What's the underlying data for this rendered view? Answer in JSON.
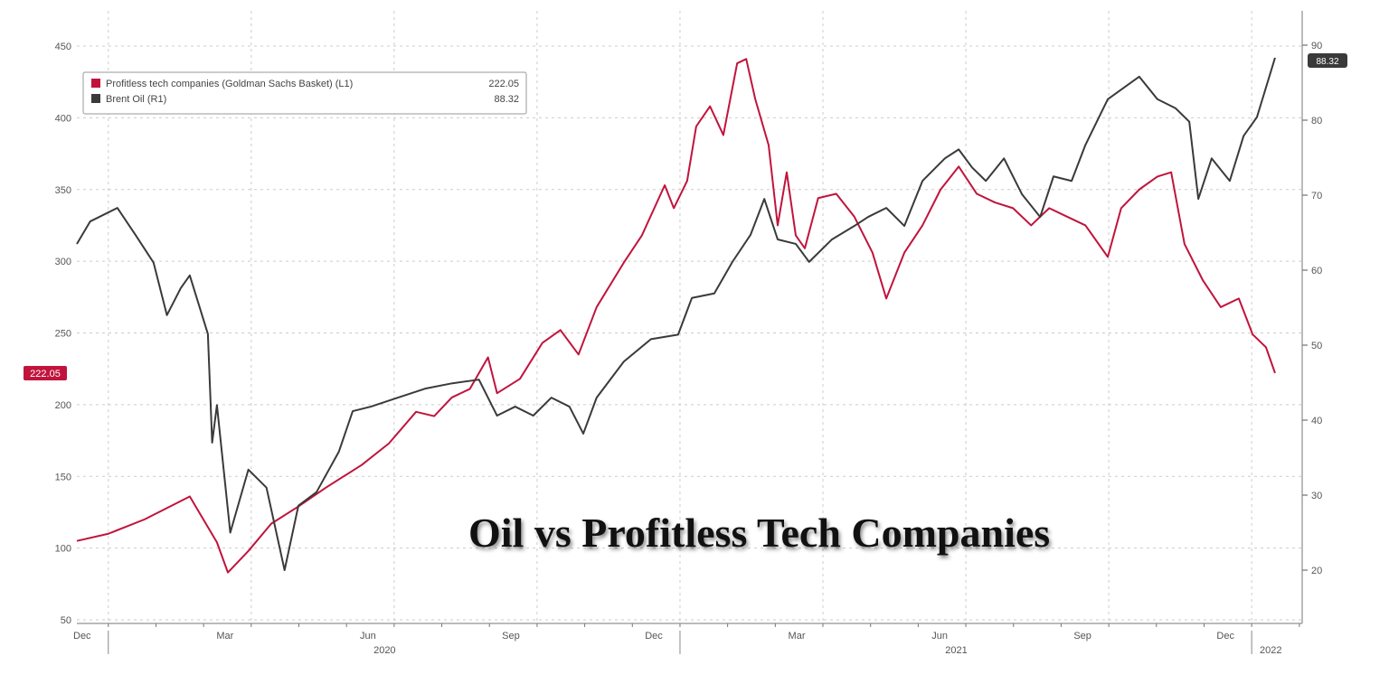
{
  "chart_data": {
    "type": "line",
    "title": "Oil vs Profitless Tech Companies",
    "x_unit": "months since Jan 2020",
    "xlim": [
      -0.66,
      25.06
    ],
    "x_tick_labels": [
      {
        "label": "Dec",
        "month": -1
      },
      {
        "label": "Mar",
        "month": 2
      },
      {
        "label": "Jun",
        "month": 5
      },
      {
        "label": "Sep",
        "month": 8
      },
      {
        "label": "Dec",
        "month": 11
      },
      {
        "label": "Mar",
        "month": 14
      },
      {
        "label": "Jun",
        "month": 17
      },
      {
        "label": "Sep",
        "month": 20
      },
      {
        "label": "Dec",
        "month": 23
      }
    ],
    "year_labels": [
      {
        "label": "2020",
        "month": 5.8
      },
      {
        "label": "2021",
        "month": 17.8
      },
      {
        "label": "2022",
        "month": 24.4
      }
    ],
    "year_dividers": [
      0,
      12,
      24
    ],
    "left_axis": {
      "ylim": [
        50,
        450
      ],
      "ticks": [
        50,
        100,
        150,
        200,
        250,
        300,
        350,
        400,
        450
      ]
    },
    "right_axis": {
      "ylim": [
        12.7,
        95
      ],
      "ticks": [
        20,
        30,
        40,
        50,
        60,
        70,
        80,
        90
      ]
    },
    "grid": true,
    "legend_placement": "top-left",
    "series": [
      {
        "name": "Profitless tech companies (Goldman Sachs Basket) (L1)",
        "last_value": "222.05",
        "axis": "left",
        "color": "#c0143c",
        "x": [
          -0.66,
          0,
          0.76,
          1.71,
          2.28,
          2.51,
          2.94,
          3.42,
          3.99,
          4.56,
          5.32,
          5.89,
          6.46,
          6.84,
          7.21,
          7.59,
          7.97,
          8.16,
          8.64,
          9.11,
          9.49,
          9.87,
          10.25,
          10.82,
          11.2,
          11.68,
          11.87,
          12.15,
          12.34,
          12.63,
          12.91,
          13.2,
          13.39,
          13.58,
          13.86,
          14.05,
          14.24,
          14.43,
          14.62,
          14.9,
          15.28,
          15.66,
          16.04,
          16.33,
          16.71,
          17.09,
          17.47,
          17.85,
          18.23,
          18.61,
          18.99,
          19.37,
          19.75,
          20.13,
          20.51,
          20.98,
          21.26,
          21.64,
          22.02,
          22.31,
          22.59,
          22.97,
          23.35,
          23.73,
          24.02,
          24.3,
          24.49
        ],
        "values": [
          105,
          110,
          120,
          136,
          104,
          83,
          98,
          117,
          129,
          142,
          158,
          173,
          195,
          192,
          205,
          211,
          233,
          208,
          218,
          243,
          252,
          235,
          268,
          299,
          318,
          353,
          337,
          356,
          394,
          408,
          388,
          438,
          441,
          413,
          381,
          325,
          362,
          318,
          309,
          344,
          347,
          331,
          306,
          274,
          306,
          325,
          350,
          366,
          347,
          341,
          337,
          325,
          337,
          331,
          325,
          303,
          337,
          350,
          359,
          362,
          312,
          287,
          268,
          274,
          249,
          240,
          222.05
        ]
      },
      {
        "name": "Brent Oil (R1)",
        "last_value": "88.32",
        "axis": "right",
        "color": "#3a3a3a",
        "x": [
          -0.66,
          -0.38,
          0.19,
          0.57,
          0.95,
          1.23,
          1.52,
          1.71,
          2.09,
          2.28,
          2.18,
          2.56,
          2.94,
          3.32,
          3.7,
          3.99,
          4.37,
          4.84,
          5.13,
          5.51,
          6.08,
          6.65,
          7.21,
          7.78,
          8.16,
          8.54,
          8.92,
          9.3,
          9.68,
          9.97,
          10.25,
          10.82,
          11.39,
          11.96,
          12.25,
          12.72,
          13.1,
          13.48,
          13.77,
          14.05,
          14.43,
          14.71,
          15.19,
          15.66,
          15.95,
          16.33,
          16.71,
          17.09,
          17.56,
          17.85,
          18.13,
          18.42,
          18.8,
          19.18,
          19.56,
          19.84,
          20.22,
          20.51,
          20.98,
          21.64,
          22.02,
          22.4,
          22.69,
          22.88,
          23.16,
          23.54,
          23.83,
          24.11,
          24.49
        ],
        "values": [
          63.5,
          66.5,
          68.3,
          64.7,
          61,
          54,
          57.6,
          59.3,
          51.5,
          42,
          37,
          25,
          33.4,
          31,
          20,
          28.6,
          30.4,
          35.8,
          41.2,
          41.8,
          43,
          44.2,
          44.9,
          45.4,
          40.6,
          41.8,
          40.6,
          43,
          41.8,
          38.2,
          43,
          47.8,
          50.8,
          51.4,
          56.3,
          56.9,
          61.1,
          64.7,
          69.5,
          64.1,
          63.5,
          61.1,
          64.1,
          65.9,
          67.1,
          68.3,
          65.9,
          71.9,
          74.9,
          76.1,
          73.7,
          71.9,
          74.9,
          70.1,
          67.1,
          72.5,
          71.9,
          76.7,
          82.8,
          85.8,
          82.8,
          81.6,
          79.8,
          69.5,
          74.9,
          71.9,
          77.9,
          80.4,
          88.32
        ]
      }
    ]
  }
}
